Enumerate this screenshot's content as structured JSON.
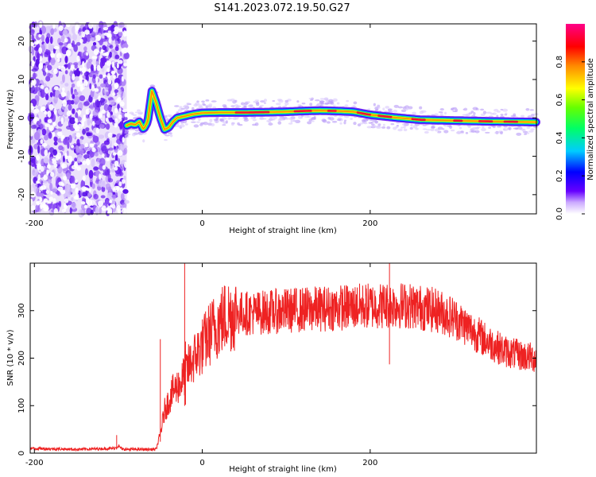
{
  "title": "S141.2023.072.19.50.G27",
  "chart_data": [
    {
      "type": "heatmap",
      "xlabel": "Height of straight line (km)",
      "ylabel": "Frequency (Hz)",
      "xlim": [
        -205,
        398
      ],
      "ylim": [
        -25,
        24.5
      ],
      "xticks": [
        -200,
        0,
        200
      ],
      "yticks": [
        -20,
        -10,
        0,
        10,
        20
      ],
      "colorbar": {
        "label": "Normalized spectral amplitude",
        "range": [
          0,
          1
        ],
        "ticks": [
          "0.0",
          "0.2",
          "0.4",
          "0.6",
          "0.8"
        ]
      },
      "noise_region": {
        "x": [
          -205,
          -90
        ]
      },
      "ridge": {
        "x": [
          -90,
          -85,
          -80,
          -75,
          -70,
          -65,
          -60,
          -55,
          -50,
          -45,
          -40,
          -35,
          -30,
          -20,
          -10,
          0,
          20,
          50,
          80,
          100,
          120,
          140,
          160,
          180,
          200,
          230,
          260,
          300,
          340,
          370,
          398
        ],
        "y": [
          -2,
          -1.5,
          -1.8,
          -1,
          -3,
          -1,
          7,
          4,
          0,
          -3,
          -2.5,
          -1,
          0,
          0.5,
          1,
          1.3,
          1.4,
          1.4,
          1.5,
          1.6,
          1.8,
          1.9,
          1.8,
          1.6,
          0.8,
          0.1,
          -0.5,
          -0.7,
          -0.9,
          -1,
          -1.1
        ]
      }
    },
    {
      "type": "line",
      "xlabel": "Height of straight line (km)",
      "ylabel": "SNR (10 * v/v)",
      "xlim": [
        -205,
        398
      ],
      "ylim": [
        0,
        400
      ],
      "xticks": [
        -200,
        0,
        200
      ],
      "yticks": [
        0,
        100,
        200,
        300
      ],
      "series": [
        {
          "color": "#ee2222",
          "envelope": {
            "x": [
              -205,
              -150,
              -105,
              -100,
              -95,
              -55,
              -50,
              -45,
              -35,
              -25,
              -20,
              -10,
              0,
              10,
              20,
              30,
              40,
              60,
              100,
              150,
              200,
              230,
              250,
              280,
              300,
              320,
              340,
              360,
              380,
              398
            ],
            "y": [
              10,
              8,
              10,
              15,
              8,
              8,
              40,
              90,
              130,
              150,
              170,
              200,
              225,
              255,
              275,
              290,
              295,
              295,
              300,
              305,
              310,
              312,
              310,
              300,
              285,
              260,
              235,
              215,
              205,
              200
            ]
          },
          "spikes": [
            {
              "x": -102,
              "y": 38
            },
            {
              "x": -50,
              "y": 240
            },
            {
              "x": -21,
              "y": 400
            },
            {
              "x": -20,
              "y": 235
            },
            {
              "x": 223,
              "y": 400
            }
          ]
        }
      ]
    }
  ]
}
